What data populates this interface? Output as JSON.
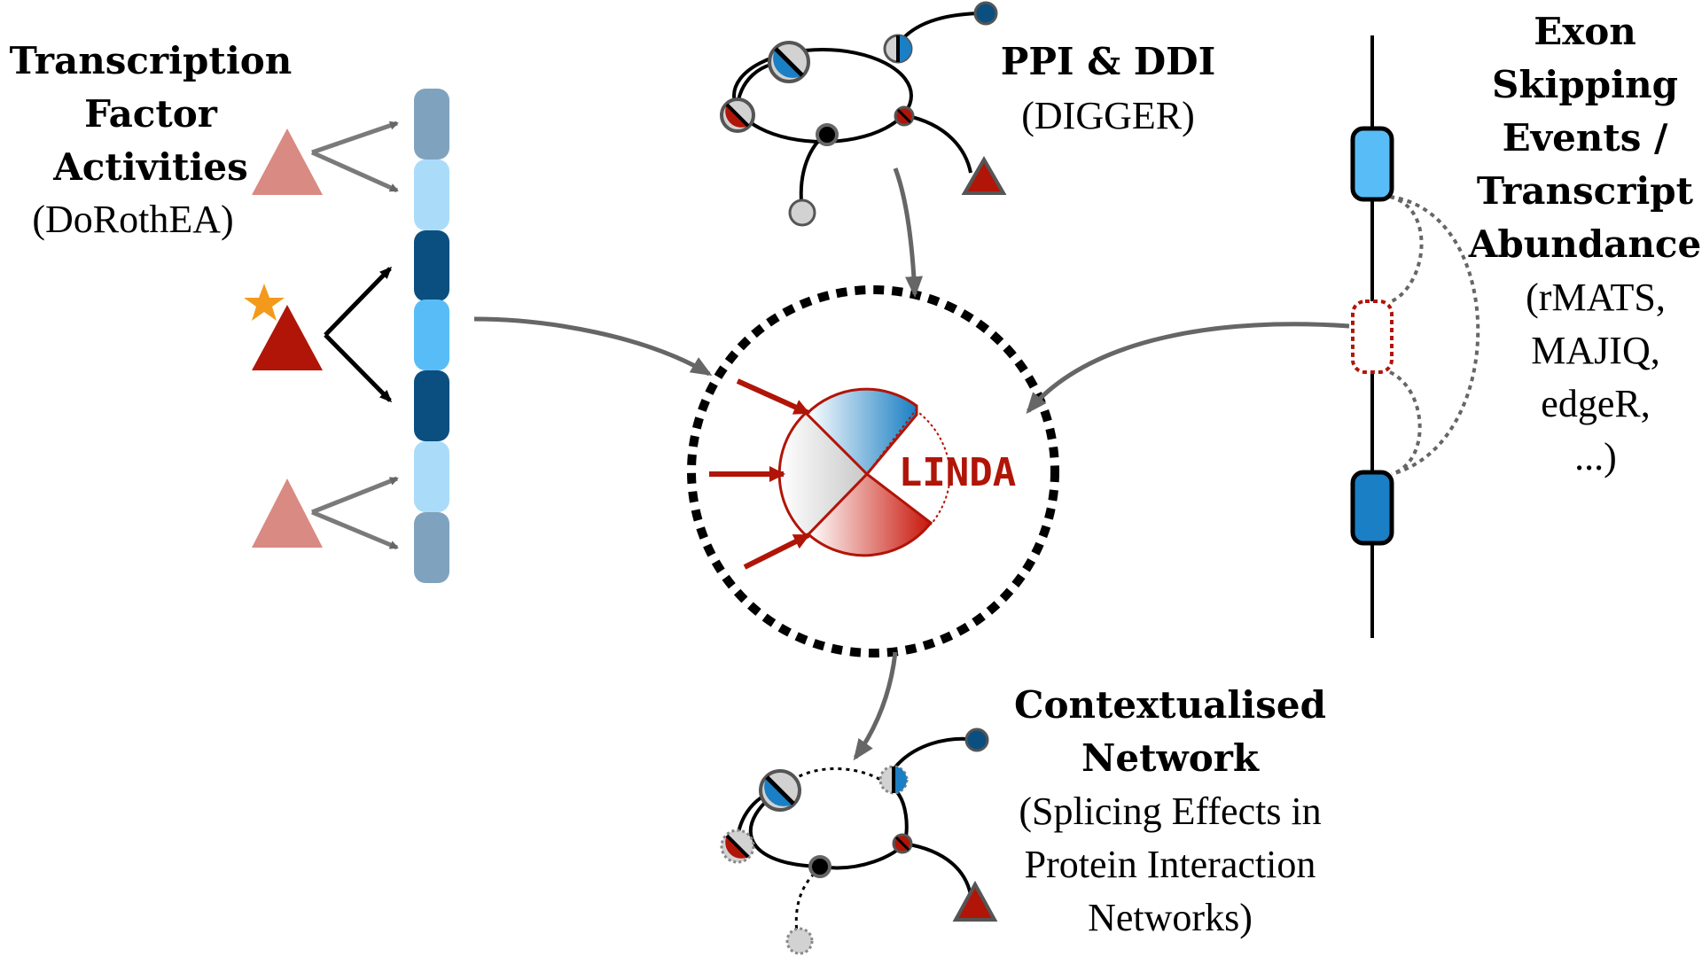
{
  "tf": {
    "title_lines": [
      "Transcription",
      "Factor",
      "Activities"
    ],
    "source": "(DoRothEA)"
  },
  "ppi": {
    "title": "PPI & DDI",
    "source": "(DIGGER)"
  },
  "exon": {
    "title_lines": [
      "Exon",
      "Skipping",
      "Events /",
      "Transcript",
      "Abundance"
    ],
    "tools": [
      "(rMATS,",
      "MAJIQ,",
      "edgeR,",
      "...)"
    ]
  },
  "center": {
    "label": "LINDA"
  },
  "output": {
    "title_lines": [
      "Contextualised",
      "Network"
    ],
    "desc_lines": [
      "(Splicing Effects in",
      "Protein Interaction",
      "Networks)"
    ]
  },
  "colors": {
    "dark_red": "#b01508",
    "light_red": "#d98a82",
    "dark_blue": "#0a4f7f",
    "mid_blue": "#1a7fc4",
    "light_blue": "#aadcfa",
    "bright_blue": "#58bdf6",
    "steel_blue": "#7fa3be",
    "orange": "#f39a1c",
    "gray": "#6b6b6b"
  }
}
